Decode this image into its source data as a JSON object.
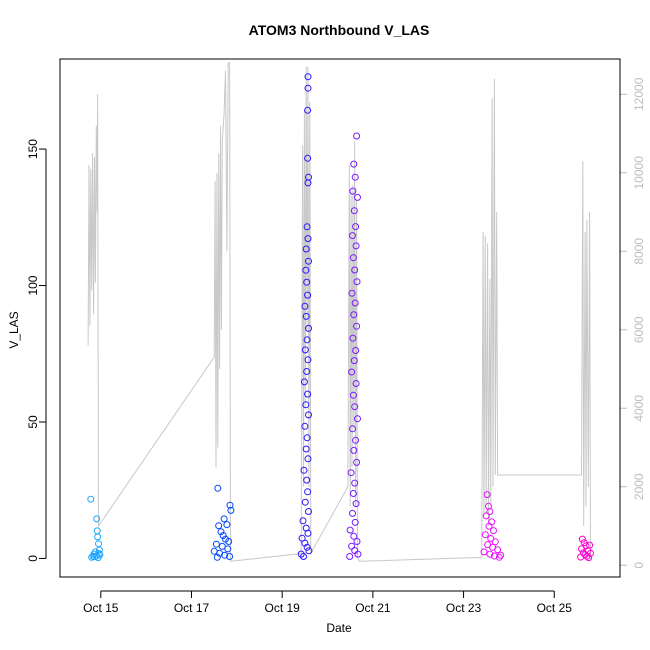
{
  "chart_data": {
    "type": "scatter",
    "title": "ATOM3 Northbound V_LAS",
    "xlabel": "Date",
    "ylabel": "V_LAS",
    "x_ticks": [
      "Oct 15",
      "Oct 17",
      "Oct 19",
      "Oct 21",
      "Oct 23",
      "Oct 25"
    ],
    "x_tick_days": [
      15,
      17,
      19,
      21,
      23,
      25
    ],
    "xlim_days": [
      14.1,
      26.45
    ],
    "y_ticks": [
      "0",
      "50",
      "100",
      "150"
    ],
    "y_tick_values": [
      0,
      50,
      100,
      150
    ],
    "ylim": [
      -6.8,
      183
    ],
    "y2_ticks": [
      "0",
      "2000",
      "4000",
      "6000",
      "8000",
      "10000",
      "12000"
    ],
    "y2_tick_values": [
      0,
      2000,
      4000,
      6000,
      8000,
      10000,
      12000
    ],
    "y2lim": [
      -300,
      12900
    ],
    "grid": false,
    "series_colors": [
      "#1ea6ff",
      "#0048ff",
      "#2a16ff",
      "#7a1aff",
      "#ee10ff",
      "#ff00d0"
    ],
    "series": [
      {
        "points": [
          {
            "x": 14.78,
            "y": 21.7
          },
          {
            "x": 14.83,
            "y": 0.8
          },
          {
            "x": 14.85,
            "y": 1.6
          },
          {
            "x": 14.88,
            "y": 2.4
          },
          {
            "x": 14.91,
            "y": 14.5
          },
          {
            "x": 14.92,
            "y": 10.1
          },
          {
            "x": 14.93,
            "y": 7.9
          },
          {
            "x": 14.95,
            "y": 5.4
          },
          {
            "x": 14.97,
            "y": 3.1
          },
          {
            "x": 14.98,
            "y": 1.3
          },
          {
            "x": 14.8,
            "y": 0.4
          },
          {
            "x": 14.86,
            "y": 0.6
          },
          {
            "x": 14.9,
            "y": 0.9
          },
          {
            "x": 14.94,
            "y": 0.3
          },
          {
            "x": 14.96,
            "y": 1.8
          }
        ]
      },
      {
        "points": [
          {
            "x": 17.58,
            "y": 25.7
          },
          {
            "x": 17.72,
            "y": 14.5
          },
          {
            "x": 17.78,
            "y": 12.4
          },
          {
            "x": 17.85,
            "y": 19.5
          },
          {
            "x": 17.87,
            "y": 17.6
          },
          {
            "x": 17.6,
            "y": 12.0
          },
          {
            "x": 17.65,
            "y": 9.8
          },
          {
            "x": 17.7,
            "y": 8.4
          },
          {
            "x": 17.75,
            "y": 7.1
          },
          {
            "x": 17.82,
            "y": 6.2
          },
          {
            "x": 17.55,
            "y": 5.2
          },
          {
            "x": 17.68,
            "y": 4.4
          },
          {
            "x": 17.8,
            "y": 3.5
          },
          {
            "x": 17.5,
            "y": 2.6
          },
          {
            "x": 17.62,
            "y": 1.9
          },
          {
            "x": 17.73,
            "y": 1.2
          },
          {
            "x": 17.84,
            "y": 0.7
          },
          {
            "x": 17.57,
            "y": 0.4
          }
        ]
      },
      {
        "points": [
          {
            "x": 19.57,
            "y": 176.5
          },
          {
            "x": 19.57,
            "y": 172.3
          },
          {
            "x": 19.56,
            "y": 164.2
          },
          {
            "x": 19.56,
            "y": 146.6
          },
          {
            "x": 19.58,
            "y": 139.7
          },
          {
            "x": 19.57,
            "y": 137.6
          },
          {
            "x": 19.55,
            "y": 121.5
          },
          {
            "x": 19.57,
            "y": 117.2
          },
          {
            "x": 19.53,
            "y": 113.4
          },
          {
            "x": 19.58,
            "y": 108.9
          },
          {
            "x": 19.52,
            "y": 105.6
          },
          {
            "x": 19.54,
            "y": 101.2
          },
          {
            "x": 19.56,
            "y": 96.5
          },
          {
            "x": 19.5,
            "y": 92.4
          },
          {
            "x": 19.53,
            "y": 88.7
          },
          {
            "x": 19.58,
            "y": 84.3
          },
          {
            "x": 19.55,
            "y": 80.1
          },
          {
            "x": 19.51,
            "y": 76.4
          },
          {
            "x": 19.57,
            "y": 72.8
          },
          {
            "x": 19.54,
            "y": 68.5
          },
          {
            "x": 19.49,
            "y": 64.7
          },
          {
            "x": 19.56,
            "y": 60.2
          },
          {
            "x": 19.52,
            "y": 56.3
          },
          {
            "x": 19.58,
            "y": 52.6
          },
          {
            "x": 19.5,
            "y": 48.4
          },
          {
            "x": 19.55,
            "y": 44.2
          },
          {
            "x": 19.53,
            "y": 40.1
          },
          {
            "x": 19.57,
            "y": 36.5
          },
          {
            "x": 19.48,
            "y": 32.3
          },
          {
            "x": 19.54,
            "y": 28.7
          },
          {
            "x": 19.56,
            "y": 24.4
          },
          {
            "x": 19.51,
            "y": 20.6
          },
          {
            "x": 19.58,
            "y": 17.2
          },
          {
            "x": 19.46,
            "y": 13.8
          },
          {
            "x": 19.53,
            "y": 11.1
          },
          {
            "x": 19.57,
            "y": 9.2
          },
          {
            "x": 19.44,
            "y": 7.4
          },
          {
            "x": 19.5,
            "y": 5.6
          },
          {
            "x": 19.55,
            "y": 4.1
          },
          {
            "x": 19.59,
            "y": 2.8
          },
          {
            "x": 19.42,
            "y": 1.6
          },
          {
            "x": 19.47,
            "y": 0.7
          }
        ]
      },
      {
        "points": [
          {
            "x": 20.64,
            "y": 154.8
          },
          {
            "x": 20.58,
            "y": 144.5
          },
          {
            "x": 20.61,
            "y": 139.7
          },
          {
            "x": 20.56,
            "y": 134.6
          },
          {
            "x": 20.66,
            "y": 132.3
          },
          {
            "x": 20.59,
            "y": 127.4
          },
          {
            "x": 20.62,
            "y": 121.6
          },
          {
            "x": 20.55,
            "y": 118.3
          },
          {
            "x": 20.63,
            "y": 114.5
          },
          {
            "x": 20.57,
            "y": 110.2
          },
          {
            "x": 20.6,
            "y": 105.7
          },
          {
            "x": 20.65,
            "y": 101.4
          },
          {
            "x": 20.54,
            "y": 97.2
          },
          {
            "x": 20.61,
            "y": 93.6
          },
          {
            "x": 20.58,
            "y": 89.3
          },
          {
            "x": 20.64,
            "y": 85.1
          },
          {
            "x": 20.56,
            "y": 80.7
          },
          {
            "x": 20.62,
            "y": 76.2
          },
          {
            "x": 20.59,
            "y": 72.5
          },
          {
            "x": 20.53,
            "y": 68.3
          },
          {
            "x": 20.63,
            "y": 64.1
          },
          {
            "x": 20.57,
            "y": 59.8
          },
          {
            "x": 20.6,
            "y": 55.6
          },
          {
            "x": 20.66,
            "y": 51.2
          },
          {
            "x": 20.55,
            "y": 47.5
          },
          {
            "x": 20.62,
            "y": 43.3
          },
          {
            "x": 20.58,
            "y": 39.6
          },
          {
            "x": 20.64,
            "y": 35.2
          },
          {
            "x": 20.52,
            "y": 31.4
          },
          {
            "x": 20.6,
            "y": 27.6
          },
          {
            "x": 20.57,
            "y": 23.8
          },
          {
            "x": 20.63,
            "y": 20.1
          },
          {
            "x": 20.55,
            "y": 16.5
          },
          {
            "x": 20.61,
            "y": 13.2
          },
          {
            "x": 20.5,
            "y": 10.4
          },
          {
            "x": 20.58,
            "y": 8.1
          },
          {
            "x": 20.65,
            "y": 6.2
          },
          {
            "x": 20.53,
            "y": 4.5
          },
          {
            "x": 20.6,
            "y": 2.9
          },
          {
            "x": 20.67,
            "y": 1.6
          },
          {
            "x": 20.49,
            "y": 0.7
          }
        ]
      },
      {
        "points": [
          {
            "x": 23.52,
            "y": 23.4
          },
          {
            "x": 23.55,
            "y": 19.1
          },
          {
            "x": 23.58,
            "y": 17.2
          },
          {
            "x": 23.5,
            "y": 15.6
          },
          {
            "x": 23.62,
            "y": 13.4
          },
          {
            "x": 23.56,
            "y": 11.8
          },
          {
            "x": 23.66,
            "y": 10.2
          },
          {
            "x": 23.48,
            "y": 8.7
          },
          {
            "x": 23.6,
            "y": 7.3
          },
          {
            "x": 23.7,
            "y": 6.1
          },
          {
            "x": 23.53,
            "y": 5.0
          },
          {
            "x": 23.64,
            "y": 4.1
          },
          {
            "x": 23.75,
            "y": 3.2
          },
          {
            "x": 23.45,
            "y": 2.4
          },
          {
            "x": 23.58,
            "y": 1.6
          },
          {
            "x": 23.68,
            "y": 0.9
          },
          {
            "x": 23.79,
            "y": 0.4
          },
          {
            "x": 23.82,
            "y": 1.2
          }
        ]
      },
      {
        "points": [
          {
            "x": 25.62,
            "y": 7.1
          },
          {
            "x": 25.66,
            "y": 5.8
          },
          {
            "x": 25.7,
            "y": 4.6
          },
          {
            "x": 25.6,
            "y": 3.5
          },
          {
            "x": 25.74,
            "y": 2.8
          },
          {
            "x": 25.78,
            "y": 4.9
          },
          {
            "x": 25.64,
            "y": 2.1
          },
          {
            "x": 25.68,
            "y": 1.4
          },
          {
            "x": 25.72,
            "y": 0.8
          },
          {
            "x": 25.8,
            "y": 1.9
          },
          {
            "x": 25.58,
            "y": 0.5
          },
          {
            "x": 25.76,
            "y": 0.3
          }
        ]
      }
    ],
    "y2_series": {
      "points": [
        {
          "x": 14.72,
          "y": 5600
        },
        {
          "x": 14.74,
          "y": 10200
        },
        {
          "x": 14.76,
          "y": 6100
        },
        {
          "x": 14.78,
          "y": 10100
        },
        {
          "x": 14.8,
          "y": 7000
        },
        {
          "x": 14.82,
          "y": 10500
        },
        {
          "x": 14.84,
          "y": 6400
        },
        {
          "x": 14.86,
          "y": 10400
        },
        {
          "x": 14.88,
          "y": 7200
        },
        {
          "x": 14.9,
          "y": 11200
        },
        {
          "x": 14.92,
          "y": 9000
        },
        {
          "x": 14.93,
          "y": 12000
        },
        {
          "x": 14.95,
          "y": 1000
        },
        {
          "x": 17.5,
          "y": 5300
        },
        {
          "x": 17.52,
          "y": 9800
        },
        {
          "x": 17.54,
          "y": 2500
        },
        {
          "x": 17.56,
          "y": 10000
        },
        {
          "x": 17.58,
          "y": 3000
        },
        {
          "x": 17.6,
          "y": 10500
        },
        {
          "x": 17.62,
          "y": 5000
        },
        {
          "x": 17.64,
          "y": 11200
        },
        {
          "x": 17.66,
          "y": 6000
        },
        {
          "x": 17.68,
          "y": 10800
        },
        {
          "x": 17.72,
          "y": 11500
        },
        {
          "x": 17.75,
          "y": 12600
        },
        {
          "x": 17.78,
          "y": 8000
        },
        {
          "x": 17.81,
          "y": 12800
        },
        {
          "x": 17.84,
          "y": 12800
        },
        {
          "x": 17.86,
          "y": 100
        },
        {
          "x": 19.42,
          "y": 300
        },
        {
          "x": 19.45,
          "y": 10700
        },
        {
          "x": 19.47,
          "y": 2000
        },
        {
          "x": 19.49,
          "y": 11600
        },
        {
          "x": 19.51,
          "y": 4000
        },
        {
          "x": 19.53,
          "y": 12700
        },
        {
          "x": 19.55,
          "y": 6000
        },
        {
          "x": 19.57,
          "y": 12700
        },
        {
          "x": 19.59,
          "y": 2000
        },
        {
          "x": 19.61,
          "y": 11800
        },
        {
          "x": 19.63,
          "y": 300
        },
        {
          "x": 20.45,
          "y": 2000
        },
        {
          "x": 20.48,
          "y": 10200
        },
        {
          "x": 20.5,
          "y": 1500
        },
        {
          "x": 20.52,
          "y": 9500
        },
        {
          "x": 20.54,
          "y": 2500
        },
        {
          "x": 20.56,
          "y": 9700
        },
        {
          "x": 20.58,
          "y": 3500
        },
        {
          "x": 20.6,
          "y": 10800
        },
        {
          "x": 20.62,
          "y": 1500
        },
        {
          "x": 20.64,
          "y": 9300
        },
        {
          "x": 20.66,
          "y": 200
        },
        {
          "x": 20.7,
          "y": 100
        },
        {
          "x": 23.4,
          "y": 200
        },
        {
          "x": 23.43,
          "y": 8500
        },
        {
          "x": 23.45,
          "y": 1200
        },
        {
          "x": 23.48,
          "y": 8400
        },
        {
          "x": 23.5,
          "y": 1500
        },
        {
          "x": 23.53,
          "y": 8200
        },
        {
          "x": 23.55,
          "y": 1000
        },
        {
          "x": 23.58,
          "y": 7300
        },
        {
          "x": 23.6,
          "y": 1500
        },
        {
          "x": 23.63,
          "y": 11900
        },
        {
          "x": 23.65,
          "y": 2000
        },
        {
          "x": 23.68,
          "y": 12400
        },
        {
          "x": 23.7,
          "y": 2300
        },
        {
          "x": 23.73,
          "y": 9000
        },
        {
          "x": 23.75,
          "y": 2300
        },
        {
          "x": 25.6,
          "y": 2300
        },
        {
          "x": 25.63,
          "y": 10300
        },
        {
          "x": 25.65,
          "y": 1000
        },
        {
          "x": 25.68,
          "y": 8500
        },
        {
          "x": 25.7,
          "y": 1500
        },
        {
          "x": 25.72,
          "y": 8800
        },
        {
          "x": 25.75,
          "y": 2000
        },
        {
          "x": 25.78,
          "y": 9000
        },
        {
          "x": 25.8,
          "y": 100
        }
      ]
    }
  }
}
